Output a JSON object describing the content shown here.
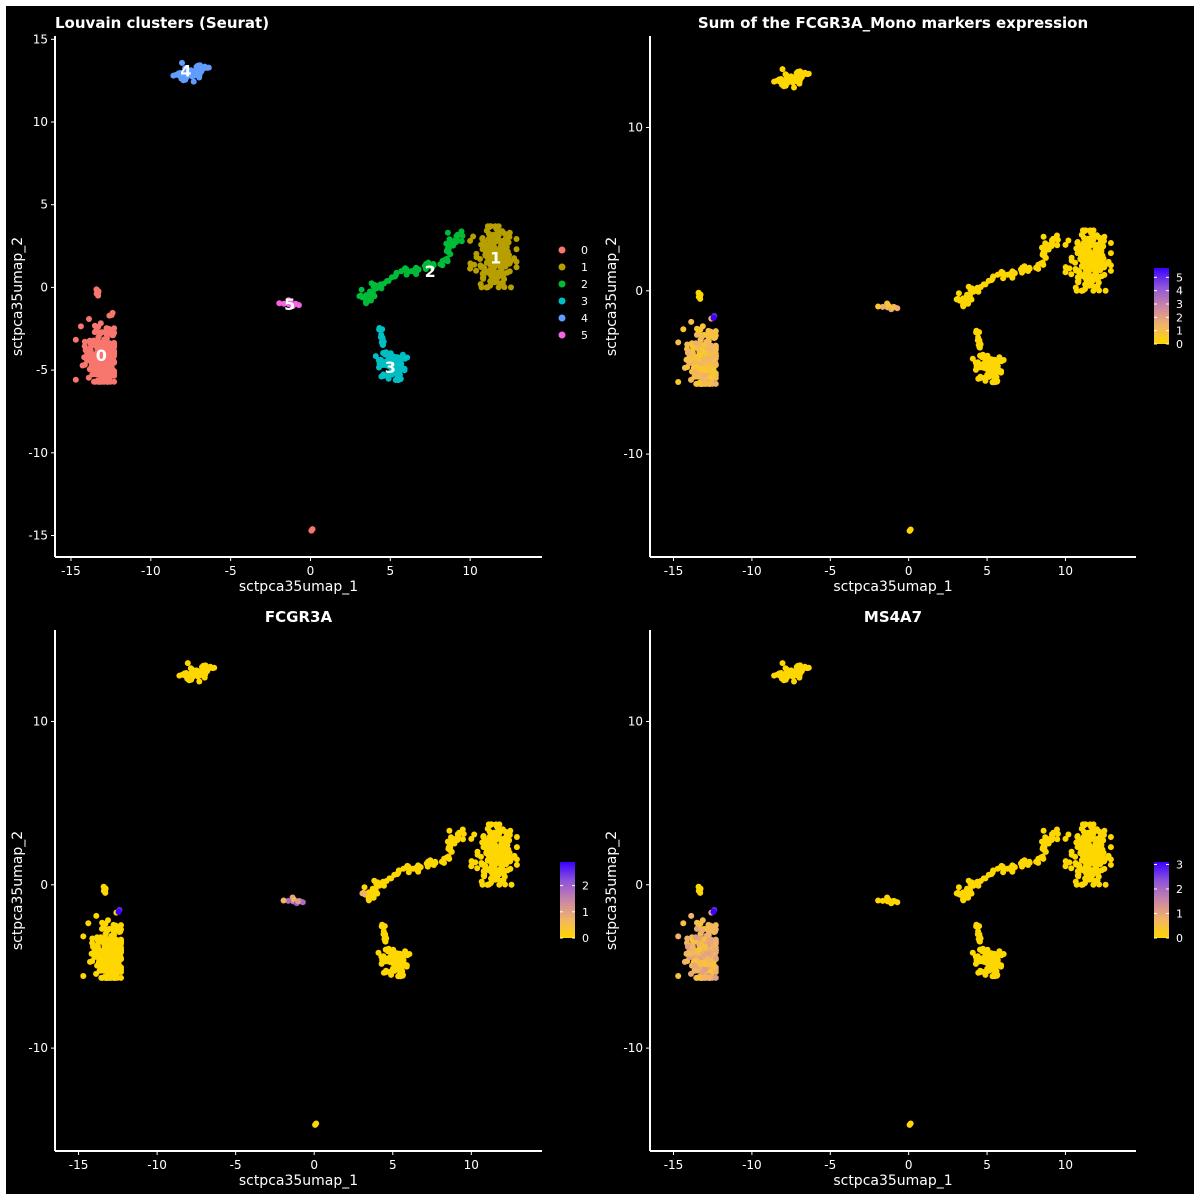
{
  "chart_data": [
    {
      "type": "scatter",
      "title": "Louvain clusters (Seurat)",
      "xlabel": "sctpca35umap_1",
      "ylabel": "sctpca35umap_2",
      "xlim": [
        -16,
        14.5
      ],
      "ylim": [
        -16.3,
        15.2
      ],
      "xticks": [
        -15,
        -10,
        -5,
        0,
        5,
        10
      ],
      "yticks": [
        -15,
        -10,
        -5,
        0,
        5,
        10,
        15
      ],
      "color_mode": "cluster",
      "legend": {
        "position": "right",
        "entries": [
          {
            "label": "0",
            "color": "#F8766D"
          },
          {
            "label": "1",
            "color": "#B79F00"
          },
          {
            "label": "2",
            "color": "#00BA38"
          },
          {
            "label": "3",
            "color": "#00BFC4"
          },
          {
            "label": "4",
            "color": "#619CFF"
          },
          {
            "label": "5",
            "color": "#F564E3"
          }
        ]
      },
      "cluster_labels": [
        {
          "text": "0",
          "x": -13.1,
          "y": -4.1
        },
        {
          "text": "1",
          "x": 11.6,
          "y": 1.8
        },
        {
          "text": "2",
          "x": 7.5,
          "y": 1.0
        },
        {
          "text": "3",
          "x": 5.0,
          "y": -4.8
        },
        {
          "text": "4",
          "x": -7.8,
          "y": 13.1
        },
        {
          "text": "5",
          "x": -1.3,
          "y": -1.0
        }
      ]
    },
    {
      "type": "scatter",
      "title": "Sum of the FCGR3A_Mono markers expression",
      "xlabel": "sctpca35umap_1",
      "ylabel": "sctpca35umap_2",
      "xlim": [
        -16.5,
        14.5
      ],
      "ylim": [
        -16.3,
        15.6
      ],
      "xticks": [
        -15,
        -10,
        -5,
        0,
        5,
        10
      ],
      "yticks": [
        -10,
        0,
        10
      ],
      "color_mode": "expression",
      "legend": {
        "position": "right",
        "min": 0,
        "max": 5.7,
        "ticks": [
          0,
          1,
          2,
          3,
          4,
          5
        ]
      },
      "hot_clusters": [
        {
          "cluster": "0",
          "level": 1.2
        },
        {
          "cluster": "5",
          "level": 1.4
        },
        {
          "cluster": "X",
          "level": 5.5
        }
      ]
    },
    {
      "type": "scatter",
      "title": "FCGR3A",
      "xlabel": "sctpca35umap_1",
      "ylabel": "sctpca35umap_2",
      "xlim": [
        -16.5,
        14.5
      ],
      "ylim": [
        -16.3,
        15.6
      ],
      "xticks": [
        -15,
        -10,
        -5,
        0,
        5,
        10
      ],
      "yticks": [
        -10,
        0,
        10
      ],
      "color_mode": "expression",
      "legend": {
        "position": "right",
        "min": 0,
        "max": 2.9,
        "ticks": [
          0,
          1,
          2
        ]
      },
      "hot_clusters": [
        {
          "cluster": "5",
          "level": 1.6
        },
        {
          "cluster": "X",
          "level": 2.8
        },
        {
          "cluster": "2tip",
          "level": 0.8
        }
      ]
    },
    {
      "type": "scatter",
      "title": "MS4A7",
      "xlabel": "sctpca35umap_1",
      "ylabel": "sctpca35umap_2",
      "xlim": [
        -16.5,
        14.5
      ],
      "ylim": [
        -16.3,
        15.6
      ],
      "xticks": [
        -15,
        -10,
        -5,
        0,
        5,
        10
      ],
      "yticks": [
        -10,
        0,
        10
      ],
      "color_mode": "expression",
      "legend": {
        "position": "right",
        "min": 0,
        "max": 3.1,
        "ticks": [
          0,
          1,
          2,
          3
        ]
      },
      "hot_clusters": [
        {
          "cluster": "0",
          "level": 0.9
        },
        {
          "cluster": "X",
          "level": 3.0
        }
      ]
    }
  ],
  "clusters": [
    {
      "id": "0",
      "color": "#F8766D",
      "n": 260,
      "shape": "blob",
      "cx": -13.1,
      "cy": -4.2,
      "sx": 0.5,
      "sy": 0.9,
      "ymin": -5.7,
      "ymax": -1.7,
      "xmin": -14.7,
      "xmax": -12.3
    },
    {
      "id": "0b",
      "color": "#F8766D",
      "n": 8,
      "shape": "blob",
      "cx": -13.3,
      "cy": -0.4,
      "sx": 0.08,
      "sy": 0.25
    },
    {
      "id": "0c",
      "color": "#F8766D",
      "n": 2,
      "shape": "blob",
      "cx": 0.1,
      "cy": -14.7,
      "sx": 0.05,
      "sy": 0.05
    },
    {
      "id": "1",
      "color": "#B79F00",
      "n": 230,
      "shape": "blob",
      "cx": 11.4,
      "cy": 1.9,
      "sx": 0.65,
      "sy": 0.9,
      "ymin": 0.0,
      "ymax": 3.7,
      "xmin": 10.0,
      "xmax": 12.9
    },
    {
      "id": "2",
      "color": "#00BA38",
      "n": 90,
      "shape": "path",
      "path": [
        [
          3.2,
          -0.5
        ],
        [
          3.9,
          -0.6
        ],
        [
          4.2,
          0.3
        ],
        [
          5.5,
          0.9
        ],
        [
          7.2,
          1.2
        ],
        [
          8.4,
          1.6
        ],
        [
          8.9,
          2.6
        ],
        [
          9.2,
          3.3
        ]
      ],
      "jitter": 0.18
    },
    {
      "id": "3",
      "color": "#00BFC4",
      "n": 80,
      "shape": "blob",
      "cx": 5.1,
      "cy": -4.7,
      "sx": 0.45,
      "sy": 0.45
    },
    {
      "id": "3b",
      "color": "#00BFC4",
      "n": 14,
      "shape": "path",
      "path": [
        [
          4.3,
          -2.4
        ],
        [
          4.6,
          -3.5
        ]
      ],
      "jitter": 0.08
    },
    {
      "id": "4",
      "color": "#619CFF",
      "n": 60,
      "shape": "path",
      "path": [
        [
          -8.2,
          12.7
        ],
        [
          -7.4,
          13.0
        ],
        [
          -6.7,
          13.3
        ]
      ],
      "jitter": 0.2
    },
    {
      "id": "5",
      "color": "#F564E3",
      "n": 12,
      "shape": "blob",
      "cx": -1.2,
      "cy": -1.0,
      "sx": 0.25,
      "sy": 0.1
    },
    {
      "id": "X",
      "color": "#F8766D",
      "n": 2,
      "shape": "blob",
      "cx": -12.4,
      "cy": -1.6,
      "sx": 0.04,
      "sy": 0.04
    },
    {
      "id": "2tip",
      "color": "#00BA38",
      "n": 3,
      "shape": "blob",
      "cx": 3.1,
      "cy": -0.5,
      "sx": 0.08,
      "sy": 0.05
    }
  ],
  "expression_palette": [
    "#FFD700",
    "#F2B36A",
    "#C985A8",
    "#8E55D9",
    "#3A00FF"
  ]
}
